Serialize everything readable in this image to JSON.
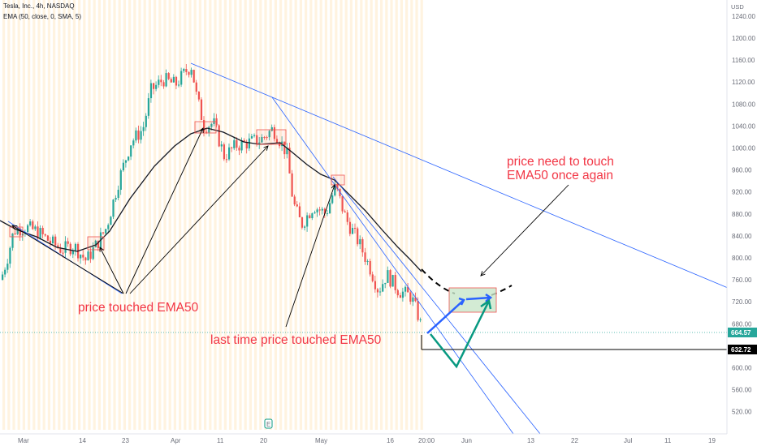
{
  "legend": {
    "symbol": "Tesla, Inc., 4h, NASDAQ",
    "indicator": "EMA (50, close, 0, SMA, 5)"
  },
  "price_axis": {
    "unit": "USD",
    "last_price_tag": "664.57",
    "level_tag": "632.72",
    "last_price_color": "#26a69a",
    "level_color": "#000000"
  },
  "annotations": {
    "touched": "price touched EMA50",
    "last_time": "last time price touched EMA50",
    "need_to_touch_1": "price need to touch",
    "need_to_touch_2": "EMA50 once again"
  },
  "colors": {
    "up": "#26a69a",
    "down": "#ef5350",
    "ema": "#131722",
    "trendline": "#2962ff",
    "annotation_text": "#f23645",
    "forecast_blue": "#2962ff",
    "forecast_green": "#089981",
    "zone_fill": "#c8e6c9",
    "zone_border": "#ef5350",
    "session_stripe": "#fff3e0",
    "session_stripe_dark": "#fde5c8"
  },
  "icons": {
    "earnings_marker": "E"
  },
  "chart_data": {
    "type": "candlestick",
    "title": "Tesla, Inc., 4h, NASDAQ",
    "indicator": "EMA (50, close, 0, SMA, 5)",
    "ylabel": "USD",
    "ylim": [
      490,
      1270
    ],
    "y_ticks": [
      520,
      560,
      600,
      640,
      680,
      720,
      760,
      800,
      840,
      880,
      920,
      960,
      1000,
      1040,
      1080,
      1120,
      1160,
      1200,
      1240
    ],
    "x_ticks": [
      "Mar",
      "14",
      "23",
      "Apr",
      "11",
      "20",
      "May",
      "16",
      "20:00",
      "Jun",
      "13",
      "22",
      "Jul",
      "11",
      "19"
    ],
    "last_price": 664.57,
    "support_level": 632.72,
    "grid": true
  }
}
